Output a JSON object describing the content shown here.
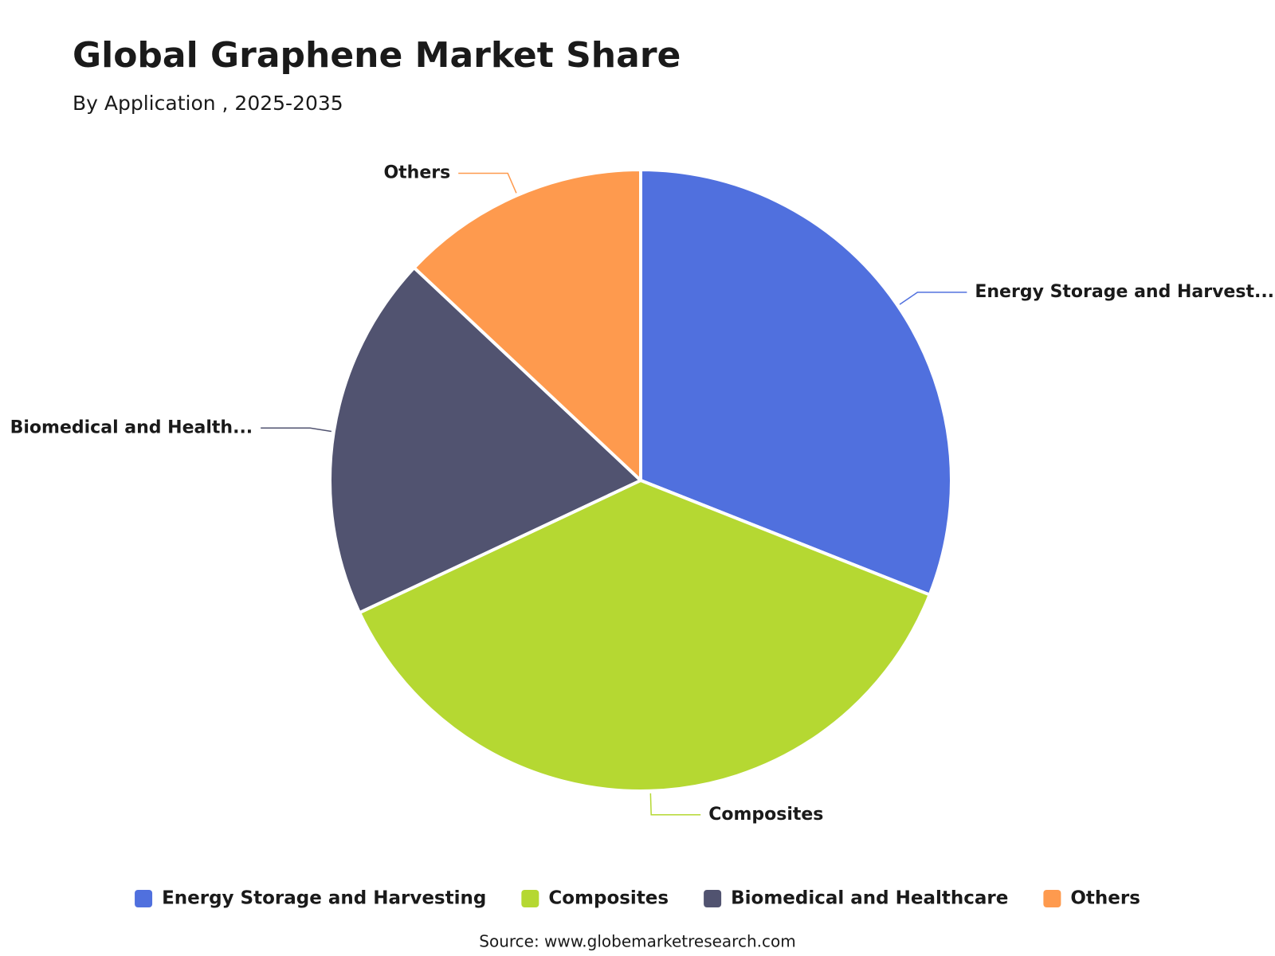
{
  "chart_data": {
    "type": "pie",
    "title": "Global Graphene Market Share",
    "subtitle": "By Application , 2025-2035",
    "categories": [
      "Energy Storage and Harvesting",
      "Composites",
      "Biomedical and Healthcare",
      "Others"
    ],
    "data_labels": [
      "Energy Storage and Harvest...",
      "Composites",
      "Biomedical and Health...",
      "Others"
    ],
    "values": [
      31,
      37,
      19,
      13
    ],
    "colors": [
      "#5070de",
      "#b5d832",
      "#515370",
      "#fe9a4e"
    ],
    "source": "Source: www.globemarketresearch.com"
  }
}
